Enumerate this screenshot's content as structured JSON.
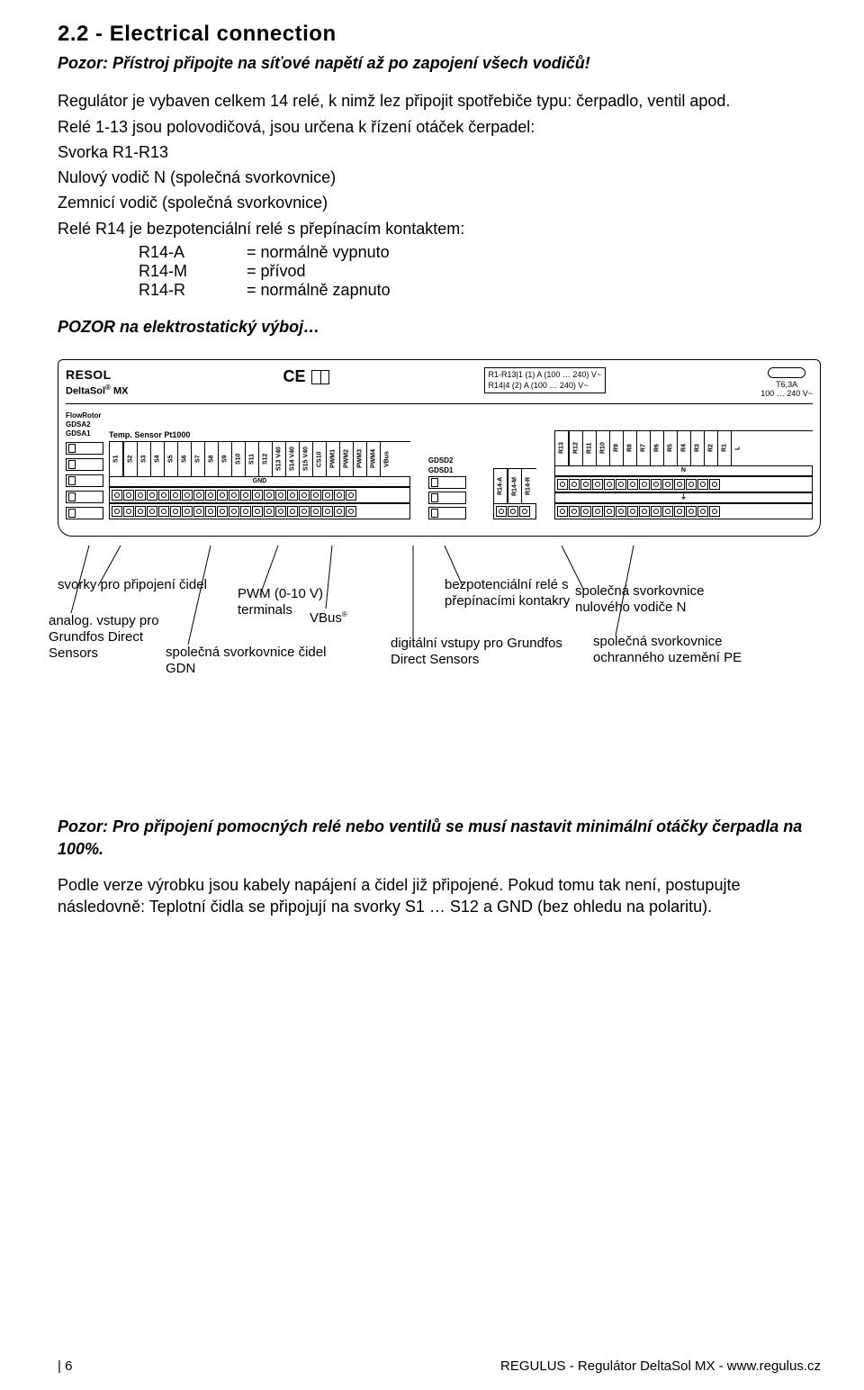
{
  "section": {
    "title": "2.2 - Electrical connection"
  },
  "warn1": "Pozor: Přístroj připojte na síťové napětí až po zapojení všech vodičů!",
  "para1": "Regulátor je vybaven celkem 14 relé, k nimž lez připojit spotřebiče typu: čerpadlo, ventil apod.",
  "para2": "Relé 1-13 jsou polovodičová, jsou určena k řízení otáček čerpadel:",
  "para3": "Svorka R1-R13",
  "para4": "Nulový vodič N (společná svorkovnice)",
  "para5": "Zemnicí vodič (společná svorkovnice)",
  "para6": "Relé R14 je bezpotenciální relé s přepínacím kontaktem:",
  "r14": {
    "a": {
      "k": "R14-A",
      "v": "= normálně vypnuto"
    },
    "m": {
      "k": "R14-M",
      "v": "= přívod"
    },
    "r": {
      "k": "R14-R",
      "v": "= normálně zapnuto"
    }
  },
  "pozor2": "POZOR na elektrostatický výboj…",
  "board": {
    "brand": "RESOL",
    "model": "DeltaSol® MX",
    "ce": "CE",
    "rating1": "R1-R13|1 (1) A (100 … 240) V~",
    "rating2": "R14|4 (2) A (100 … 240) V~",
    "fuse": "T6,3A",
    "fuseV": "100 … 240 V~",
    "flowrotor": "FlowRotor",
    "gdsa": [
      "GDSA2",
      "GDSA1"
    ],
    "sensor_title": "Temp. Sensor Pt1000",
    "sensors": [
      "S1",
      "S2",
      "S3",
      "S4",
      "S5",
      "S6",
      "S7",
      "S8",
      "S9",
      "S10",
      "S11",
      "S12",
      "S13 V40",
      "S14 V40",
      "S15 V40",
      "CS10",
      "PWM1",
      "PWM2",
      "PWM3",
      "PWM4",
      "VBus"
    ],
    "gnd": "GND",
    "gdsd_title": "GDSD2",
    "gdsd_title2": "GDSD1",
    "r14labels": [
      "R14-A",
      "R14-M",
      "R14-R"
    ],
    "relays": [
      "R13",
      "R12",
      "R11",
      "R10",
      "R9",
      "R8",
      "R7",
      "R6",
      "R5",
      "R4",
      "R3",
      "R2",
      "R1",
      "L"
    ],
    "n": "N",
    "pe": "⏚"
  },
  "call": {
    "c1a": "svorky pro připojení čidel",
    "c1b": "analog. vstupy pro Grundfos Direct Sensors",
    "c2": "společná svorkovnice čidel GDN",
    "c3": "PWM (0-10 V) terminals",
    "c4": "VBus®",
    "c5": "bezpotenciální relé s přepínacími kontakry",
    "c6": "digitální vstupy pro Grundfos Direct Sensors",
    "c7": "společná svorkovnice nulového vodiče N",
    "c8": "společná svorkovnice ochranného uzemění PE"
  },
  "warn3": "Pozor: Pro připojení pomocných relé nebo ventilů se musí nastavit minimální otáčky čerpadla na 100%.",
  "para7": "Podle verze výrobku jsou kabely napájení a čidel již připojené. Pokud tomu tak není, postupujte následovně: Teplotní čidla se připojují na svorky S1 … S12 a GND (bez ohledu na polaritu).",
  "footer": {
    "page": "6",
    "right": "REGULUS - Regulátor DeltaSol MX - www.regulus.cz"
  }
}
